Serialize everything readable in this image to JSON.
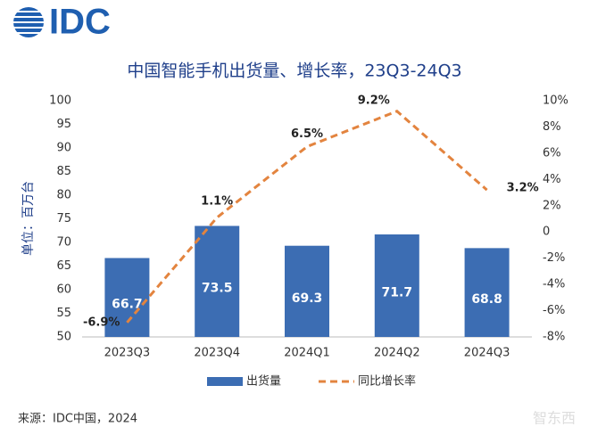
{
  "logo": "IDC",
  "watermark": "智东西",
  "source": "来源：IDC中国，2024",
  "chart_data": {
    "type": "combo",
    "title": "中国智能手机出货量、增长率，23Q3-24Q3",
    "y_label": "单位：百万台",
    "categories": [
      "2023Q3",
      "2023Q4",
      "2024Q1",
      "2024Q2",
      "2024Q3"
    ],
    "series": [
      {
        "name": "出货量",
        "type": "bar",
        "color": "#3c6db3",
        "values": [
          66.7,
          73.5,
          69.3,
          71.7,
          68.8
        ]
      },
      {
        "name": "同比增长率",
        "type": "line",
        "axis": "y2",
        "color": "#e3843f",
        "values": [
          -6.9,
          1.1,
          6.5,
          9.2,
          3.2
        ],
        "value_labels": [
          "-6.9%",
          "1.1%",
          "6.5%",
          "9.2%",
          "3.2%"
        ]
      }
    ],
    "ylim": [
      50,
      100
    ],
    "yticks": [
      50,
      55,
      60,
      65,
      70,
      75,
      80,
      85,
      90,
      95,
      100
    ],
    "y2lim": [
      -8,
      10
    ],
    "y2ticks": [
      {
        "value": -8,
        "label": "-8%"
      },
      {
        "value": -6,
        "label": "-6%"
      },
      {
        "value": -4,
        "label": "-4%"
      },
      {
        "value": -2,
        "label": "-2%"
      },
      0,
      {
        "value": 2,
        "label": "2%"
      },
      {
        "value": 4,
        "label": "4%"
      },
      {
        "value": 6,
        "label": "6%"
      },
      {
        "value": 8,
        "label": "8%"
      },
      {
        "value": 10,
        "label": "10%"
      }
    ],
    "legend": "bottom"
  }
}
